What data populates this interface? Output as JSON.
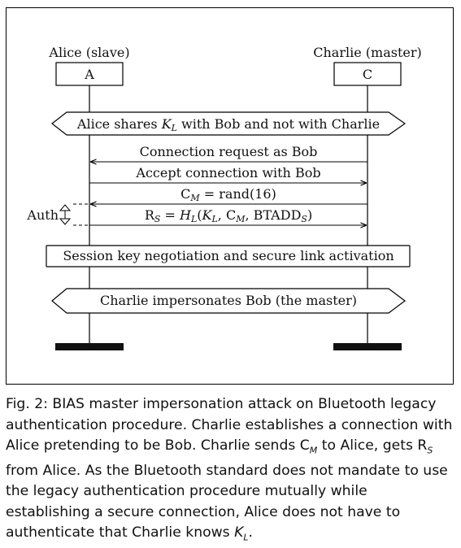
{
  "participants": {
    "left": {
      "title": "Alice (slave)",
      "box": "A"
    },
    "right": {
      "title": "Charlie (master)",
      "box": "C"
    }
  },
  "banners": {
    "shares_key": "Alice shares K_L with Bob and not with Charlie",
    "session": "Session key negotiation and secure link activation",
    "impersonates": "Charlie impersonates Bob (the master)"
  },
  "messages": {
    "conn_request": "Connection request as Bob",
    "accept": "Accept connection with Bob",
    "cm": "C_M = rand(16)",
    "rs": "R_S = H_L(K_L, C_M, BTADD_S)"
  },
  "auth_label": "Auth",
  "caption": "Fig. 2: BIAS master impersonation attack on Bluetooth legacy authentication procedure. Charlie establishes a connection with Alice pretending to be Bob. Charlie sends C_M to Alice, gets R_S from Alice. As the Bluetooth standard does not mandate to use the legacy authentication procedure mutually while establishing a secure connection, Alice does not have to authenticate that Charlie knows K_L."
}
